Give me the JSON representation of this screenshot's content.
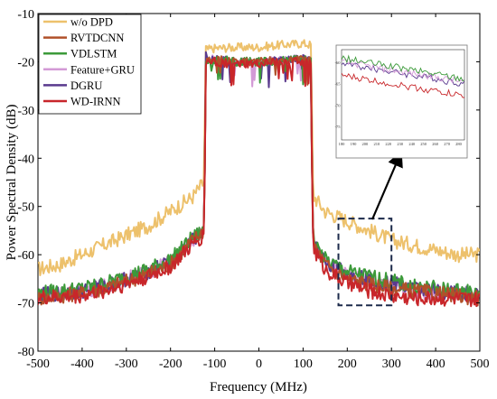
{
  "chart_data": {
    "type": "line",
    "xlabel": "Frequency (MHz)",
    "ylabel": "Power Spectral Density (dB)",
    "xlim": [
      -500,
      500
    ],
    "ylim": [
      -80,
      -10
    ],
    "xticks": [
      "-500",
      "-400",
      "-300",
      "-200",
      "-100",
      "0",
      "100",
      "200",
      "300",
      "400",
      "500"
    ],
    "yticks": [
      "-10",
      "-20",
      "-30",
      "-40",
      "-50",
      "-60",
      "-70",
      "-80"
    ],
    "legend_position": "top-left",
    "grid": false,
    "series": [
      {
        "name": "w/o DPD",
        "color": "#EDC16C",
        "x": [
          -500,
          -450,
          -400,
          -350,
          -300,
          -250,
          -200,
          -150,
          -125,
          -122,
          -120,
          -100,
          -50,
          0,
          50,
          100,
          118,
          120,
          122,
          125,
          150,
          200,
          250,
          300,
          350,
          400,
          450,
          500
        ],
        "y": [
          -63,
          -62,
          -60,
          -58,
          -56,
          -54,
          -51,
          -48,
          -45,
          -30,
          -17.5,
          -17.2,
          -17,
          -17,
          -16.5,
          -16.2,
          -16.5,
          -30,
          -45,
          -48,
          -51,
          -53,
          -55,
          -57,
          -58,
          -59,
          -60,
          -60
        ]
      },
      {
        "name": "RVTDCNN",
        "color": "#B0512A",
        "x": [
          -500,
          -450,
          -400,
          -350,
          -300,
          -250,
          -200,
          -150,
          -125,
          -122,
          -120,
          -100,
          -50,
          0,
          50,
          100,
          118,
          120,
          122,
          125,
          150,
          200,
          250,
          300,
          350,
          400,
          450,
          500
        ],
        "y": [
          -69,
          -68.5,
          -68,
          -67,
          -65.5,
          -64,
          -62,
          -57,
          -55,
          -40,
          -19.5,
          -19.5,
          -20,
          -20,
          -19.8,
          -19.5,
          -19.8,
          -40,
          -55,
          -58,
          -62,
          -65,
          -66,
          -67,
          -67.5,
          -68,
          -68.5,
          -69
        ]
      },
      {
        "name": "VDLSTM",
        "color": "#3C9A3A",
        "x": [
          -500,
          -450,
          -400,
          -350,
          -300,
          -250,
          -200,
          -150,
          -125,
          -122,
          -120,
          -100,
          -50,
          0,
          50,
          100,
          118,
          120,
          122,
          125,
          150,
          200,
          250,
          300,
          350,
          400,
          450,
          500
        ],
        "y": [
          -68,
          -67.5,
          -67,
          -66,
          -64.5,
          -63,
          -61,
          -56.5,
          -55,
          -40,
          -19.5,
          -19.5,
          -20,
          -20,
          -19.8,
          -19.5,
          -19.8,
          -40,
          -55,
          -57.5,
          -61,
          -63.5,
          -64.5,
          -65.5,
          -66.5,
          -67,
          -67.5,
          -68
        ]
      },
      {
        "name": "Feature+GRU",
        "color": "#D39AD6",
        "x": [
          -500,
          -450,
          -400,
          -350,
          -300,
          -250,
          -200,
          -150,
          -125,
          -122,
          -120,
          -100,
          -50,
          0,
          50,
          100,
          118,
          120,
          122,
          125,
          150,
          200,
          250,
          300,
          350,
          400,
          450,
          500
        ],
        "y": [
          -68.5,
          -68,
          -67.5,
          -66.5,
          -65,
          -63.5,
          -61.5,
          -57,
          -55,
          -40,
          -19.5,
          -19.5,
          -20,
          -20,
          -19.8,
          -19.5,
          -19.8,
          -40,
          -55,
          -58,
          -61.5,
          -64.5,
          -65.5,
          -66.5,
          -67.5,
          -68,
          -68.5,
          -69
        ]
      },
      {
        "name": "DGRU",
        "color": "#5A3A8E",
        "x": [
          -500,
          -450,
          -400,
          -350,
          -300,
          -250,
          -200,
          -150,
          -125,
          -122,
          -120,
          -100,
          -50,
          0,
          50,
          100,
          118,
          120,
          122,
          125,
          150,
          200,
          250,
          300,
          350,
          400,
          450,
          500
        ],
        "y": [
          -68.5,
          -68,
          -67.5,
          -66.5,
          -65,
          -63.5,
          -61.5,
          -57,
          -55,
          -40,
          -19.5,
          -19.5,
          -20,
          -20,
          -19.8,
          -19.5,
          -19.8,
          -40,
          -55,
          -58,
          -61.5,
          -64,
          -65,
          -66,
          -67,
          -67.5,
          -68,
          -68.5
        ]
      },
      {
        "name": "WD-IRNN",
        "color": "#C8262A",
        "x": [
          -500,
          -450,
          -400,
          -350,
          -300,
          -250,
          -200,
          -150,
          -125,
          -122,
          -120,
          -100,
          -50,
          0,
          50,
          100,
          118,
          120,
          122,
          125,
          150,
          200,
          250,
          300,
          350,
          400,
          450,
          500
        ],
        "y": [
          -69,
          -68.8,
          -68.5,
          -67.5,
          -66,
          -64.5,
          -62.5,
          -58,
          -56,
          -40,
          -20,
          -20,
          -20.5,
          -20.5,
          -20,
          -20,
          -20.3,
          -40,
          -56,
          -59,
          -63,
          -66,
          -67.5,
          -68.5,
          -69,
          -69,
          -69.2,
          -69.5
        ]
      }
    ],
    "annotation_box": {
      "x_range": [
        180,
        300
      ],
      "y_range": [
        -70.5,
        -52.5
      ]
    },
    "inset": {
      "xticks": [
        "180",
        "190",
        "200",
        "210",
        "220",
        "230",
        "240",
        "250",
        "260",
        "270",
        "280"
      ],
      "yticks": [
        "-60",
        "-65",
        "-70",
        "-75"
      ],
      "xlim": [
        180,
        285
      ],
      "ylim": [
        -78,
        -57
      ]
    }
  }
}
